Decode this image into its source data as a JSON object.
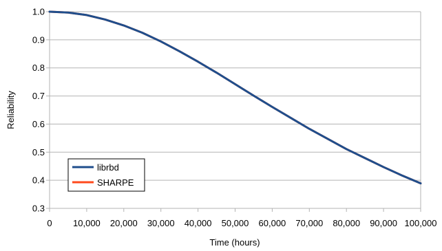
{
  "chart_data": {
    "type": "line",
    "xlabel": "Time (hours)",
    "ylabel": "Reliability",
    "xlim": [
      0,
      100000
    ],
    "ylim": [
      0.3,
      1.0
    ],
    "x_ticks": [
      "0",
      "10,000",
      "20,000",
      "30,000",
      "40,000",
      "50,000",
      "60,000",
      "70,000",
      "80,000",
      "90,000",
      "100,000"
    ],
    "y_ticks": [
      "0.3",
      "0.4",
      "0.5",
      "0.6",
      "0.7",
      "0.8",
      "0.9",
      "1.0"
    ],
    "grid": "horizontal",
    "legend_position": "bottom-left",
    "series": [
      {
        "name": "librbd",
        "color": "#1f4e8c",
        "x": [
          0,
          5000,
          10000,
          15000,
          20000,
          25000,
          30000,
          35000,
          40000,
          45000,
          50000,
          55000,
          60000,
          65000,
          70000,
          75000,
          80000,
          85000,
          90000,
          95000,
          100000
        ],
        "y": [
          1.0,
          0.997,
          0.988,
          0.972,
          0.951,
          0.925,
          0.894,
          0.859,
          0.822,
          0.783,
          0.742,
          0.701,
          0.661,
          0.622,
          0.583,
          0.547,
          0.511,
          0.479,
          0.447,
          0.417,
          0.389
        ]
      },
      {
        "name": "SHARPE",
        "color": "#ff4a1c",
        "x": [
          0,
          5000,
          10000,
          15000,
          20000,
          25000,
          30000,
          35000,
          40000,
          45000,
          50000,
          55000,
          60000,
          65000,
          70000,
          75000,
          80000,
          85000,
          90000,
          95000,
          100000
        ],
        "y": [
          1.0,
          0.997,
          0.988,
          0.972,
          0.951,
          0.925,
          0.894,
          0.859,
          0.822,
          0.783,
          0.742,
          0.701,
          0.661,
          0.622,
          0.583,
          0.547,
          0.511,
          0.479,
          0.447,
          0.417,
          0.389
        ]
      }
    ]
  }
}
